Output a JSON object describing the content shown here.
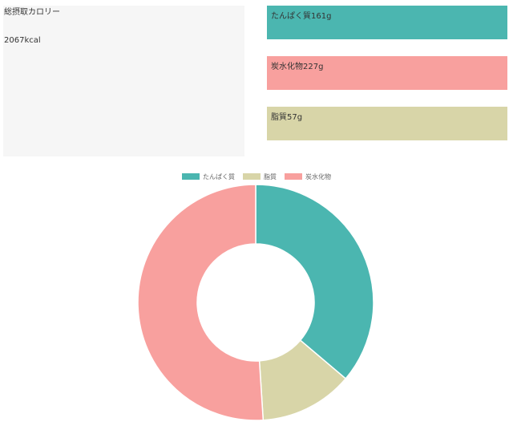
{
  "summary": {
    "calorie_label": "総摂取カロリー",
    "calorie_value": "2067kcal"
  },
  "macros": {
    "protein": {
      "text": "たんぱく質161g",
      "color": "#4bb6b0"
    },
    "carb": {
      "text": "炭水化物227g",
      "color": "#f8a09e"
    },
    "fat": {
      "text": "脂質57g",
      "color": "#d8d5a8"
    }
  },
  "chart_data": {
    "type": "pie",
    "donut": true,
    "legend_position": "top",
    "categories": [
      "たんぱく質",
      "脂質",
      "炭水化物"
    ],
    "values": [
      161,
      57,
      227
    ],
    "colors": [
      "#4bb6b0",
      "#d8d5a8",
      "#f8a09e"
    ]
  }
}
